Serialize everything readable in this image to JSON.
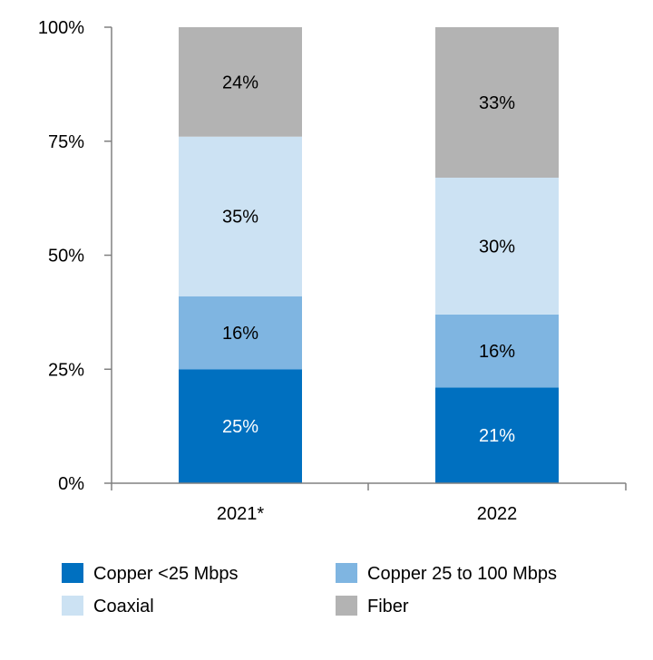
{
  "chart_data": {
    "type": "bar",
    "stacked": true,
    "categories": [
      "2021*",
      "2022"
    ],
    "series": [
      {
        "name": "Copper <25 Mbps",
        "values": [
          25,
          21
        ],
        "labels": [
          "25%",
          "21%"
        ],
        "color": "#0070C0",
        "label_color": "#ffffff"
      },
      {
        "name": "Copper 25 to 100 Mbps",
        "values": [
          16,
          16
        ],
        "labels": [
          "16%",
          "16%"
        ],
        "color": "#7FB5E1",
        "label_color": "#000000"
      },
      {
        "name": "Coaxial",
        "values": [
          35,
          30
        ],
        "labels": [
          "35%",
          "30%"
        ],
        "color": "#CCE2F3",
        "label_color": "#000000"
      },
      {
        "name": "Fiber",
        "values": [
          24,
          33
        ],
        "labels": [
          "24%",
          "33%"
        ],
        "color": "#B3B3B3",
        "label_color": "#000000"
      }
    ],
    "yticks": [
      0,
      25,
      50,
      75,
      100
    ],
    "ytick_labels": [
      "0%",
      "25%",
      "50%",
      "75%",
      "100%"
    ],
    "ylim": [
      0,
      100
    ],
    "title": "",
    "xlabel": "",
    "ylabel": "",
    "legend_position": "bottom",
    "axis_color": "#808080"
  }
}
